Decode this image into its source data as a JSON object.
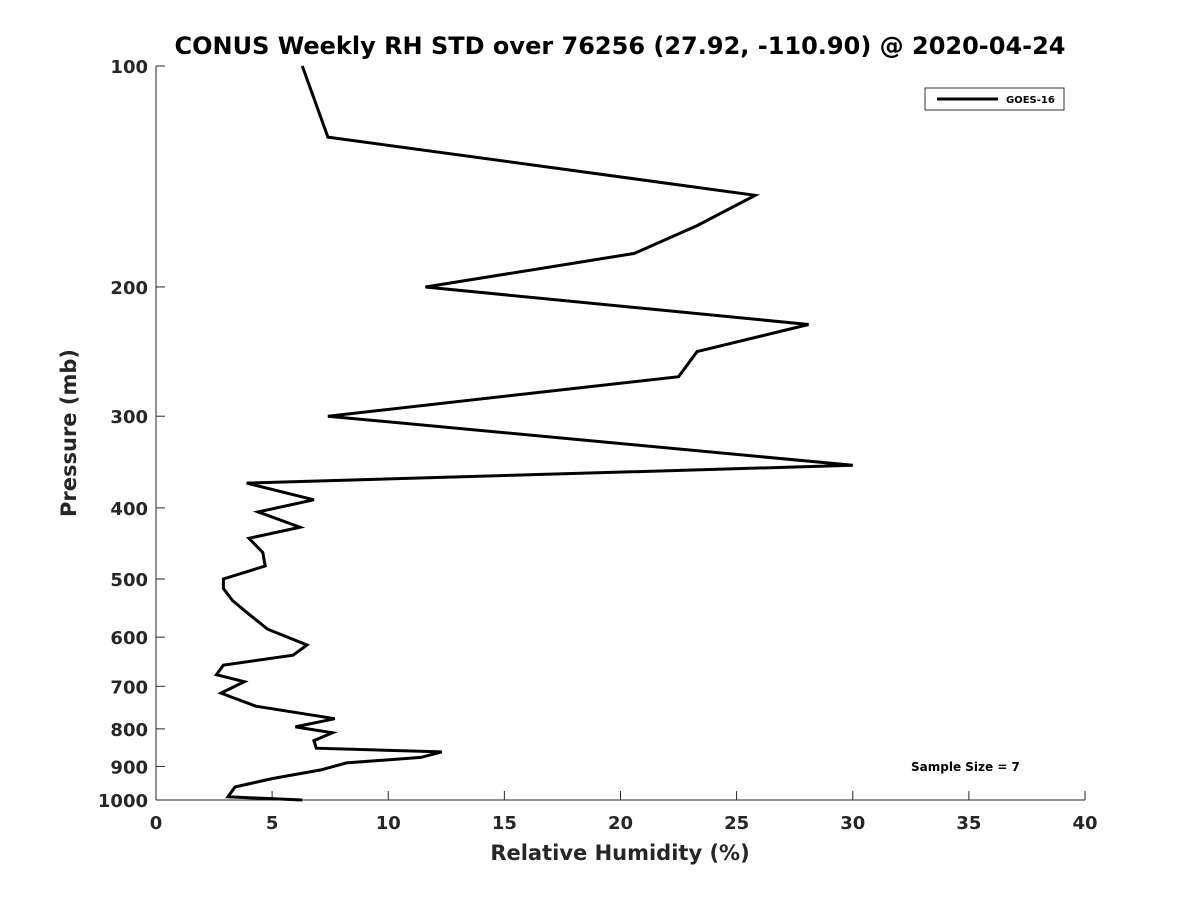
{
  "chart_data": {
    "type": "line",
    "title": "CONUS Weekly RH STD over 76256 (27.92, -110.90) @ 2020-04-24",
    "xlabel": "Relative Humidity (%)",
    "ylabel": "Pressure (mb)",
    "xlim": [
      0,
      40
    ],
    "ylim": [
      100,
      1000
    ],
    "y_scale": "log",
    "y_direction": "reversed",
    "x_ticks": [
      "0",
      "5",
      "10",
      "15",
      "20",
      "25",
      "30",
      "35",
      "40"
    ],
    "y_ticks": [
      "100",
      "200",
      "300",
      "400",
      "500",
      "600",
      "700",
      "800",
      "900",
      "1000"
    ],
    "grid": false,
    "legend_position": "top-right",
    "annotation": "Sample Size = 7",
    "series": [
      {
        "name": "GOES-16",
        "color": "#000000",
        "x": [
          6.3,
          7.4,
          25.8,
          23.3,
          20.6,
          11.6,
          28.1,
          23.3,
          22.5,
          7.4,
          30.0,
          3.9,
          6.8,
          4.4,
          6.2,
          4.0,
          4.6,
          4.7,
          2.9,
          2.9,
          3.3,
          3.9,
          4.8,
          6.5,
          5.9,
          2.9,
          2.6,
          3.8,
          2.8,
          4.3,
          7.7,
          6.0,
          7.6,
          6.8,
          6.9,
          12.3,
          11.4,
          8.2,
          7.1,
          5.0,
          3.4,
          3.1,
          6.3
        ],
        "y": [
          100,
          125,
          150,
          165,
          180,
          200,
          225,
          245,
          265,
          300,
          350,
          370,
          390,
          405,
          425,
          440,
          460,
          480,
          500,
          515,
          535,
          555,
          585,
          615,
          635,
          655,
          675,
          690,
          715,
          745,
          775,
          795,
          810,
          830,
          850,
          860,
          875,
          890,
          910,
          935,
          960,
          990,
          1000
        ]
      }
    ]
  }
}
